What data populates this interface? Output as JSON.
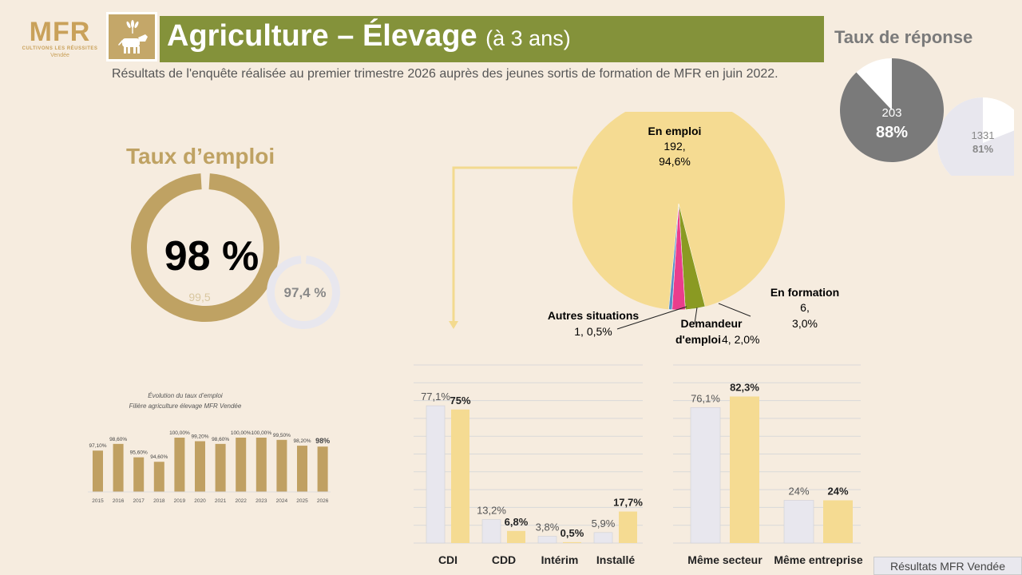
{
  "logo": {
    "brand": "MFR",
    "tagline": "CULTIVONS LES RÉUSSITES",
    "region": "Vendée"
  },
  "header": {
    "title": "Agriculture – Élevage",
    "title_suffix": "(à 3 ans)",
    "subtitle": "Résultats de l'enquête réalisée au premier trimestre 2026 auprès des jeunes sortis de formation de MFR en juin 2022."
  },
  "colors": {
    "olive": "#84923a",
    "gold": "#bfa263",
    "bar_gold": "#c0a062",
    "pale_yellow": "#f5db92",
    "light_grey": "#e8e7ee",
    "dark_grey": "#7a7a7a",
    "pink": "#ea3d8c",
    "green": "#8a9a22",
    "blue": "#5b8fc7"
  },
  "response_rate": {
    "title": "Taux de réponse",
    "main_count": "203",
    "main_pct": "88%",
    "main_value": 88,
    "compare_count": "1331",
    "compare_pct": "81%",
    "compare_value": 81
  },
  "employment": {
    "title": "Taux d’emploi",
    "main_label": "98 %",
    "main_value": 98,
    "inner_label": "99,5",
    "compare_label": "97,4 %",
    "compare_value": 97.4
  },
  "footer": {
    "label": "Résultats MFR Vendée"
  },
  "chart_data": [
    {
      "type": "bar",
      "title": "Évolution du taux d’emploi",
      "subtitle": "Filière agriculture élevage MFR Vendée",
      "categories": [
        "2015",
        "2016",
        "2017",
        "2018",
        "2019",
        "2020",
        "2021",
        "2022",
        "2023",
        "2024",
        "2025",
        "2026"
      ],
      "values": [
        97.1,
        98.6,
        95.6,
        94.6,
        100,
        99.2,
        98.6,
        100,
        100,
        99.5,
        98.2,
        98
      ],
      "labels": [
        "97,10%",
        "98,60%",
        "95,60%",
        "94,60%",
        "100,00%",
        "99,20%",
        "98,60%",
        "100,00%",
        "100,00%",
        "99,50%",
        "98,20%",
        "98%"
      ],
      "ylim": [
        90,
        100
      ]
    },
    {
      "type": "pie",
      "slices": [
        {
          "name": "En emploi",
          "count": "192,",
          "pct_label": "94,6%",
          "value": 94.6,
          "color": "#f5db92"
        },
        {
          "name": "En formation",
          "count": "6,",
          "pct_label": "3,0%",
          "value": 3.0,
          "color": "#8a9a22"
        },
        {
          "name": "Demandeur",
          "name2": "d'emploi",
          "count": "4, 2,0%",
          "value": 2.0,
          "color": "#ea3d8c"
        },
        {
          "name": "Autres situations",
          "count": "1, 0,5%",
          "value": 0.5,
          "color": "#5b8fc7"
        }
      ]
    },
    {
      "type": "bar",
      "categories": [
        "CDI",
        "CDD",
        "Intérim",
        "Installé"
      ],
      "series": [
        {
          "values": [
            77.1,
            13.2,
            3.8,
            5.9
          ],
          "labels": [
            "77,1%",
            "13,2%",
            "3,8%",
            "5,9%"
          ],
          "color": "#e8e7ee"
        },
        {
          "values": [
            75,
            6.8,
            0.5,
            17.7
          ],
          "labels": [
            "75%",
            "6,8%",
            "0,5%",
            "17,7%"
          ],
          "color": "#f5db92"
        }
      ],
      "ylim": [
        0,
        100
      ],
      "grid": true
    },
    {
      "type": "bar",
      "categories": [
        "Même secteur",
        "Même entreprise"
      ],
      "series": [
        {
          "values": [
            76.1,
            24
          ],
          "labels": [
            "76,1%",
            "24%"
          ],
          "color": "#e8e7ee"
        },
        {
          "values": [
            82.3,
            24
          ],
          "labels": [
            "82,3%",
            "24%"
          ],
          "color": "#f5db92"
        }
      ],
      "ylim": [
        0,
        100
      ],
      "grid": true
    }
  ]
}
